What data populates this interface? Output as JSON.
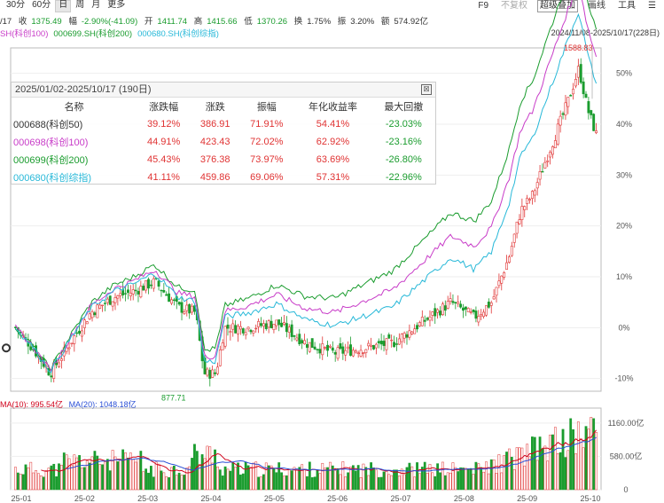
{
  "toolbar": {
    "periods": [
      "30分",
      "60分",
      "日",
      "周",
      "月",
      "更多"
    ],
    "active_period": "日",
    "right_items": [
      {
        "label": "F9",
        "state": "normal"
      },
      {
        "label": "不复权",
        "state": "disabled"
      },
      {
        "label": "超级叠加",
        "state": "highlight"
      },
      {
        "label": "画线",
        "state": "normal"
      },
      {
        "label": "工具",
        "state": "normal"
      }
    ],
    "menu_glyph": "☰"
  },
  "quote": {
    "date": "/17",
    "price_label": "收",
    "price": "1375.49",
    "change_label": "幅",
    "change": "-2.90%(-41.09)",
    "open_label": "开",
    "open": "1411.74",
    "high_label": "高",
    "high": "1415.66",
    "low_label": "低",
    "low": "1370.26",
    "turnover_label": "换",
    "turnover": "1.75%",
    "amplitude_label": "振",
    "amplitude": "3.20%",
    "amount_label": "额",
    "amount": "574.92亿"
  },
  "series_legend": [
    {
      "label": "SH(科创100)",
      "color": "#c83cc8"
    },
    {
      "label": "000699.SH(科创200)",
      "color": "#1a9c2e"
    },
    {
      "label": "000680.SH(科创综指)",
      "color": "#27b8d8"
    }
  ],
  "date_range": "2024/11/08-2025/10/17(228日)",
  "chart": {
    "y_ticks": [
      "50%",
      "40%",
      "30%",
      "20%",
      "10%",
      "0%",
      "-10%"
    ],
    "y_tick_values": [
      50,
      40,
      30,
      20,
      10,
      0,
      -10
    ],
    "y_min": -12.5,
    "y_max": 55,
    "high_label": "1588.83",
    "low_label": "877.71",
    "x_ticks": [
      "25-01",
      "25-02",
      "25-03",
      "25-04",
      "25-05",
      "25-06",
      "25-07",
      "25-08",
      "25-09",
      "25-10"
    ],
    "colors": {
      "up": "#e03333",
      "down": "#1a9c2e",
      "kc100": "#c83cc8",
      "kc200": "#1a9c2e",
      "kczz": "#27b8d8"
    }
  },
  "overlay": {
    "title": "2025/01/02-2025/10/17 (190日)",
    "headers": [
      "名称",
      "涨跌幅",
      "涨跌",
      "振幅",
      "年化收益率",
      "最大回撤"
    ],
    "rows": [
      {
        "name": "000688(科创50)",
        "color": "#333333",
        "pct": "39.12%",
        "chg": "386.91",
        "amp": "71.91%",
        "ann": "54.41%",
        "dd": "-23.03%"
      },
      {
        "name": "000698(科创100)",
        "color": "#c83cc8",
        "pct": "44.91%",
        "chg": "423.43",
        "amp": "72.02%",
        "ann": "62.92%",
        "dd": "-23.16%"
      },
      {
        "name": "000699(科创200)",
        "color": "#1a9c2e",
        "pct": "45.43%",
        "chg": "376.38",
        "amp": "73.97%",
        "ann": "63.69%",
        "dd": "-26.80%"
      },
      {
        "name": "000680(科创综指)",
        "color": "#27b8d8",
        "pct": "41.11%",
        "chg": "459.86",
        "amp": "69.06%",
        "ann": "57.31%",
        "dd": "-22.96%"
      }
    ]
  },
  "ma": {
    "prefix": "MA(",
    "ma10_label": "MA(10): 995.54亿",
    "ma20_label": "MA(20): 1048.18亿",
    "ma10_color": "#d0021b",
    "ma20_color": "#2a4fd6",
    "vol_ticks": [
      "1160.00亿",
      "580.00亿",
      "0"
    ],
    "vol_tick_values": [
      1160,
      580,
      0
    ],
    "vol_max": 1420
  }
}
